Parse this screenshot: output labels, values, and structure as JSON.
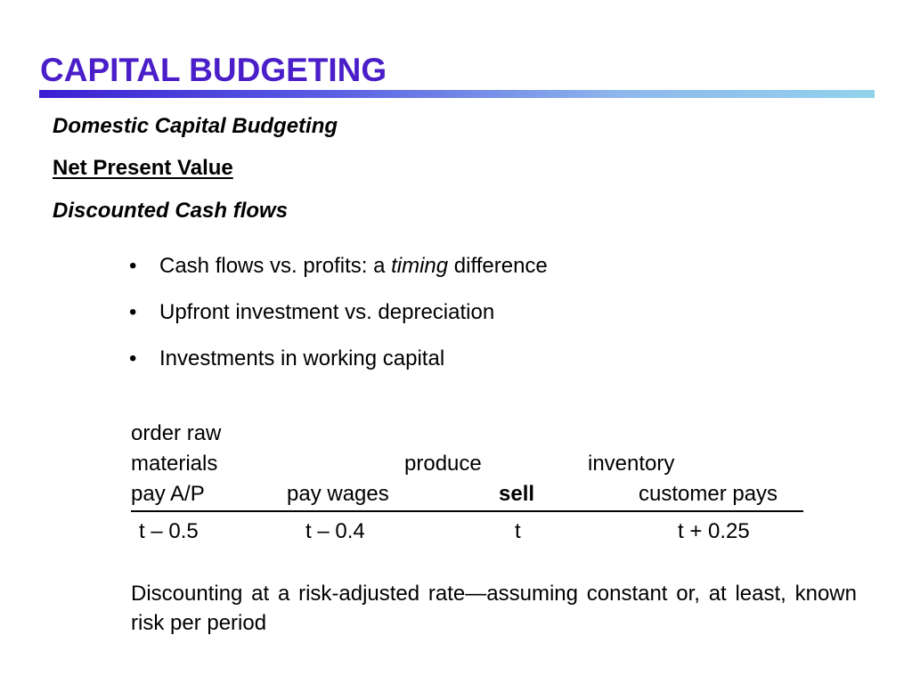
{
  "slide": {
    "title": "CAPITAL BUDGETING",
    "subtitle_1": "Domestic Capital Budgeting",
    "subtitle_2": "Net Present Value",
    "subtitle_3": "Discounted Cash flows",
    "bullet_symbol": "•",
    "bullets": [
      {
        "before": "Cash flows vs. profits: a ",
        "emphasis": "timing",
        "after": " difference"
      },
      {
        "text": "Upfront investment vs. depreciation"
      },
      {
        "text": "Investments in working capital"
      }
    ],
    "timeline": {
      "row1": [
        "order raw"
      ],
      "row2": [
        "materials",
        "produce",
        "inventory"
      ],
      "row3": [
        "pay A/P",
        "pay wages",
        "sell",
        "customer pays"
      ],
      "times": [
        "t – 0.5",
        "t – 0.4",
        "t",
        "t + 0.25"
      ]
    },
    "paragraph": "Discounting at a risk-adjusted rate—assuming constant or, at least, known risk per period"
  }
}
